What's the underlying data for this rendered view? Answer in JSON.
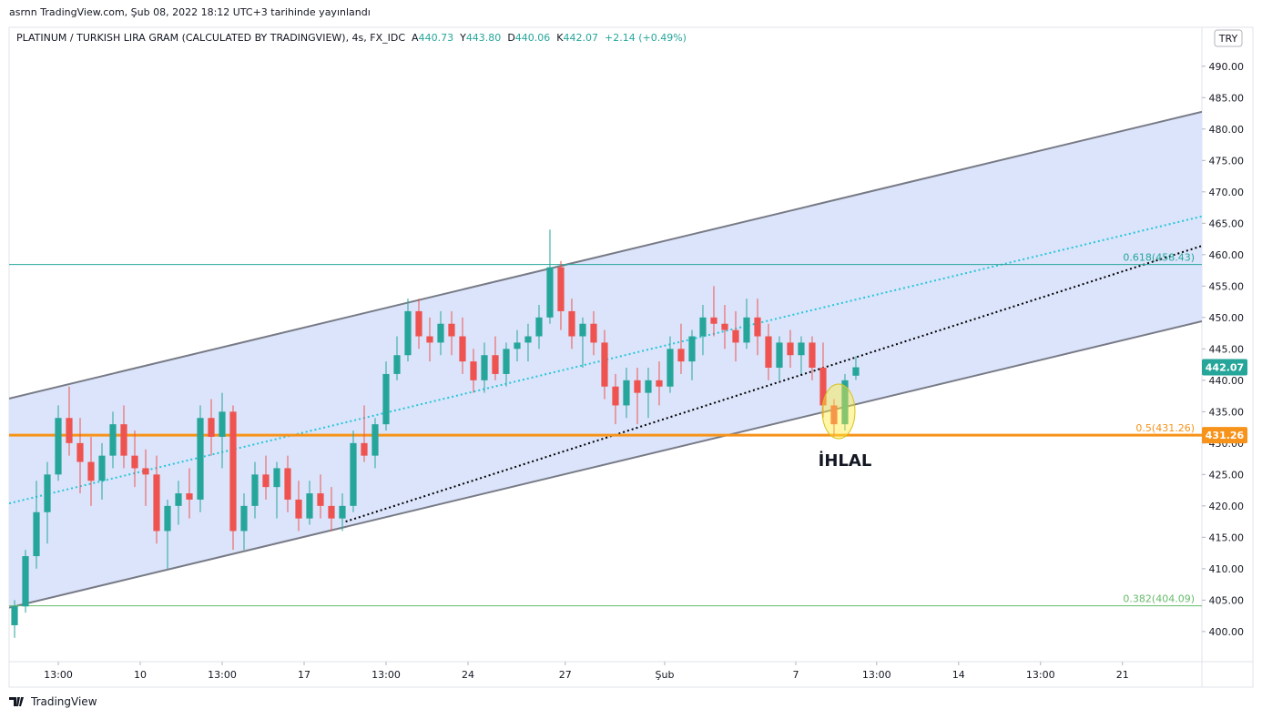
{
  "header": {
    "published": "asrnn TradingView.com, Şub 08, 2022 18:12 UTC+3 tarihinde yayınlandı"
  },
  "footer": {
    "brand": "TradingView"
  },
  "chart_data": {
    "type": "candlestick",
    "title": "PLATINUM / TURKISH LIRA GRAM (CALCULATED BY TRADINGVIEW), 4s, FX_IDC",
    "ohlc_labels": [
      "A",
      "Y",
      "D",
      "K"
    ],
    "change": "+2.14 (+0.49%)",
    "currency": "TRY",
    "up_color": "#26a69a",
    "down_color": "#ef5350",
    "candles": [
      [
        401,
        405,
        399,
        404
      ],
      [
        404,
        413,
        403,
        412
      ],
      [
        412,
        424,
        410,
        419
      ],
      [
        419,
        427,
        414,
        425
      ],
      [
        425,
        436,
        424,
        434
      ],
      [
        434,
        439,
        428,
        430
      ],
      [
        430,
        434,
        422,
        427
      ],
      [
        427,
        431,
        420,
        424
      ],
      [
        424,
        430,
        421,
        428
      ],
      [
        428,
        435,
        426,
        433
      ],
      [
        433,
        436,
        426,
        428
      ],
      [
        428,
        432,
        423,
        426
      ],
      [
        426,
        429,
        420,
        425
      ],
      [
        425,
        428,
        414,
        416
      ],
      [
        416,
        421,
        410,
        420
      ],
      [
        420,
        424,
        417,
        422
      ],
      [
        422,
        426,
        418,
        421
      ],
      [
        421,
        436,
        419,
        434
      ],
      [
        434,
        437,
        428,
        431
      ],
      [
        431,
        438,
        426,
        435
      ],
      [
        435,
        436,
        413,
        416
      ],
      [
        416,
        422,
        413,
        420
      ],
      [
        420,
        427,
        418,
        425
      ],
      [
        425,
        428,
        421,
        423
      ],
      [
        423,
        427,
        418,
        426
      ],
      [
        426,
        428,
        419,
        421
      ],
      [
        421,
        424,
        416,
        418
      ],
      [
        418,
        424,
        417,
        422
      ],
      [
        422,
        425,
        418,
        420
      ],
      [
        420,
        423,
        416,
        418
      ],
      [
        418,
        422,
        416,
        420
      ],
      [
        420,
        432,
        419,
        430
      ],
      [
        430,
        436,
        427,
        428
      ],
      [
        428,
        434,
        426,
        433
      ],
      [
        433,
        443,
        432,
        441
      ],
      [
        441,
        447,
        440,
        444
      ],
      [
        444,
        453,
        443,
        451
      ],
      [
        451,
        453,
        445,
        447
      ],
      [
        447,
        450,
        443,
        446
      ],
      [
        446,
        451,
        444,
        449
      ],
      [
        449,
        451,
        444,
        447
      ],
      [
        447,
        450,
        441,
        443
      ],
      [
        443,
        445,
        438,
        440
      ],
      [
        440,
        446,
        438,
        444
      ],
      [
        444,
        447,
        440,
        441
      ],
      [
        441,
        446,
        439,
        445
      ],
      [
        445,
        448,
        443,
        446
      ],
      [
        446,
        449,
        443,
        447
      ],
      [
        447,
        452,
        445,
        450
      ],
      [
        450,
        464,
        449,
        458
      ],
      [
        458,
        459,
        448,
        451
      ],
      [
        451,
        453,
        445,
        447
      ],
      [
        447,
        450,
        442,
        449
      ],
      [
        449,
        451,
        444,
        446
      ],
      [
        446,
        448,
        437,
        439
      ],
      [
        439,
        441,
        433,
        436
      ],
      [
        436,
        442,
        434,
        440
      ],
      [
        440,
        442,
        433,
        438
      ],
      [
        438,
        442,
        434,
        440
      ],
      [
        440,
        443,
        436,
        439
      ],
      [
        439,
        447,
        438,
        445
      ],
      [
        445,
        449,
        441,
        443
      ],
      [
        443,
        448,
        440,
        447
      ],
      [
        447,
        452,
        444,
        450
      ],
      [
        450,
        455,
        447,
        449
      ],
      [
        449,
        452,
        445,
        448
      ],
      [
        448,
        451,
        443,
        446
      ],
      [
        446,
        453,
        445,
        450
      ],
      [
        450,
        453,
        444,
        447
      ],
      [
        447,
        449,
        440,
        442
      ],
      [
        442,
        447,
        440,
        446
      ],
      [
        446,
        448,
        442,
        444
      ],
      [
        444,
        447,
        441,
        446
      ],
      [
        446,
        447,
        440,
        442
      ],
      [
        442,
        446,
        434,
        436
      ],
      [
        436,
        437,
        431,
        433
      ],
      [
        433,
        441,
        432,
        440
      ],
      [
        440.73,
        443.8,
        440.06,
        442.07
      ]
    ],
    "xlim": [
      0,
      109.17
    ],
    "xticks": [
      {
        "value": 4.5,
        "label": "13:00"
      },
      {
        "value": 12,
        "label": "10"
      },
      {
        "value": 19.5,
        "label": "13:00"
      },
      {
        "value": 27,
        "label": "17"
      },
      {
        "value": 34.5,
        "label": "13:00"
      },
      {
        "value": 42,
        "label": "24"
      },
      {
        "value": 50.9,
        "label": "27"
      },
      {
        "value": 60,
        "label": "Şub"
      },
      {
        "value": 72,
        "label": "7"
      },
      {
        "value": 79.4,
        "label": "13:00"
      },
      {
        "value": 86.9,
        "label": "14"
      },
      {
        "value": 94.4,
        "label": "13:00"
      },
      {
        "value": 101.9,
        "label": "21"
      }
    ],
    "ylim": [
      395.2,
      496.2
    ],
    "yticks": [
      {
        "value": 400,
        "label": "400.00"
      },
      {
        "value": 405,
        "label": "405.00"
      },
      {
        "value": 410,
        "label": "410.00"
      },
      {
        "value": 415,
        "label": "415.00"
      },
      {
        "value": 420,
        "label": "420.00"
      },
      {
        "value": 425,
        "label": "425.00"
      },
      {
        "value": 430,
        "label": "430.00"
      },
      {
        "value": 435,
        "label": "435.00"
      },
      {
        "value": 440,
        "label": "440.00"
      },
      {
        "value": 445,
        "label": "445.00"
      },
      {
        "value": 450,
        "label": "450.00"
      },
      {
        "value": 455,
        "label": "455.00"
      },
      {
        "value": 460,
        "label": "460.00"
      },
      {
        "value": 465,
        "label": "465.00"
      },
      {
        "value": 470,
        "label": "470.00"
      },
      {
        "value": 475,
        "label": "475.00"
      },
      {
        "value": 480,
        "label": "480.00"
      },
      {
        "value": 485,
        "label": "485.00"
      },
      {
        "value": 490,
        "label": "490.00"
      }
    ],
    "channel": {
      "color": "#dbe4fb",
      "upper": {
        "x": [
          0,
          109.17
        ],
        "y": [
          437.1,
          482.75
        ]
      },
      "lower": {
        "x": [
          0,
          109.17
        ],
        "y": [
          403.8,
          449.4
        ]
      }
    },
    "trendlines": [
      {
        "x": [
          0,
          109.17
        ],
        "y": [
          420.4,
          466.1
        ],
        "color": "#26c6da",
        "dashed": true
      },
      {
        "x": [
          30.8,
          109.17
        ],
        "y": [
          417.5,
          461.4
        ],
        "color": "#000000",
        "dashed": true
      }
    ],
    "hlines": [
      {
        "value": 458.43,
        "label": "0.618(458.43)",
        "color": "#26a69a",
        "width": 1
      },
      {
        "value": 431.26,
        "label": "0.5(431.26)",
        "color": "#f7931a",
        "width": 3
      },
      {
        "value": 404.09,
        "label": "0.382(404.09)",
        "color": "#66bb6a",
        "width": 1
      }
    ],
    "annotation": "İHLAL"
  }
}
